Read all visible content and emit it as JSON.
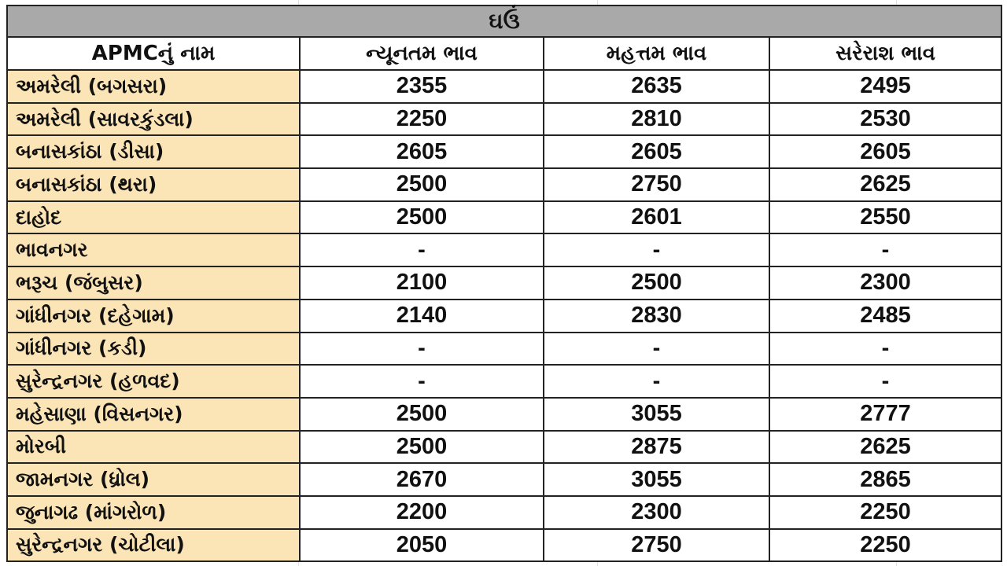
{
  "title": "ઘઉં",
  "headers": [
    "APMCનું નામ",
    "ન્યૂનતમ ભાવ",
    "મહત્તમ ભાવ",
    "સરેરાશ ભાવ"
  ],
  "rows": [
    {
      "name": "અમરેલી (બગસરા)",
      "min": "2355",
      "max": "2635",
      "avg": "2495"
    },
    {
      "name": "અમરેલી (સાવરકુંડલા)",
      "min": "2250",
      "max": "2810",
      "avg": "2530"
    },
    {
      "name": "બનાસકાંઠા (ડીસા)",
      "min": "2605",
      "max": "2605",
      "avg": "2605"
    },
    {
      "name": "બનાસકાંઠા (થરા)",
      "min": "2500",
      "max": "2750",
      "avg": "2625"
    },
    {
      "name": "દાહોદ",
      "min": "2500",
      "max": "2601",
      "avg": "2550"
    },
    {
      "name": "ભાવનગર",
      "min": "-",
      "max": "-",
      "avg": "-"
    },
    {
      "name": "ભરૂચ (જંબુસર)",
      "min": "2100",
      "max": "2500",
      "avg": "2300"
    },
    {
      "name": "ગાંધીનગર (દહેગામ)",
      "min": "2140",
      "max": "2830",
      "avg": "2485"
    },
    {
      "name": "ગાંધીનગર (કડી)",
      "min": "-",
      "max": "-",
      "avg": "-"
    },
    {
      "name": "સુરેન્દ્રનગર (હળવદ)",
      "min": "-",
      "max": "-",
      "avg": "-"
    },
    {
      "name": "મહેસાણા (વિસનગર)",
      "min": "2500",
      "max": "3055",
      "avg": "2777"
    },
    {
      "name": "મોરબી",
      "min": "2500",
      "max": "2875",
      "avg": "2625"
    },
    {
      "name": "જામનગર (ધ્રોલ)",
      "min": "2670",
      "max": "3055",
      "avg": "2865"
    },
    {
      "name": "જુનાગઢ (માંગરોળ)",
      "min": "2200",
      "max": "2300",
      "avg": "2250"
    },
    {
      "name": "સુરેન્દ્રનગર (ચોટીલા)",
      "min": "2050",
      "max": "2750",
      "avg": "2250"
    }
  ],
  "colors": {
    "title_bg": "#a9a9a9",
    "name_bg": "#fbe4b5",
    "border": "#222222"
  }
}
